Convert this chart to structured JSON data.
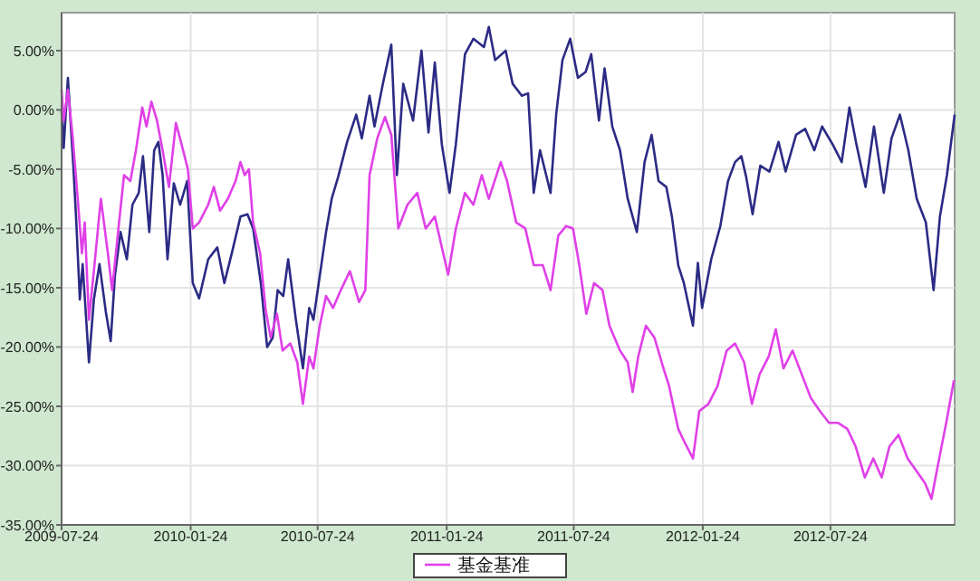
{
  "chart_data": {
    "type": "line",
    "xlim": [
      "2009-07-24",
      "2013-01-17"
    ],
    "xticks": [
      {
        "value": "2009-07-24",
        "label": "2009-07-24"
      },
      {
        "value": "2010-01-24",
        "label": "2010-01-24"
      },
      {
        "value": "2010-07-24",
        "label": "2010-07-24"
      },
      {
        "value": "2011-01-24",
        "label": "2011-01-24"
      },
      {
        "value": "2011-07-24",
        "label": "2011-07-24"
      },
      {
        "value": "2012-01-24",
        "label": "2012-01-24"
      },
      {
        "value": "2012-07-24",
        "label": "2012-07-24"
      }
    ],
    "ylim": [
      -35,
      8.2
    ],
    "yticks": [
      {
        "value": 5,
        "label": "5.00%"
      },
      {
        "value": 0,
        "label": "0.00%"
      },
      {
        "value": -5,
        "label": "-5.00%"
      },
      {
        "value": -10,
        "label": "-10.00%"
      },
      {
        "value": -15,
        "label": "-15.00%"
      },
      {
        "value": -20,
        "label": "-20.00%"
      },
      {
        "value": -25,
        "label": "-25.00%"
      },
      {
        "value": -30,
        "label": "-30.00%"
      },
      {
        "value": -35,
        "label": "-35.00%"
      }
    ],
    "grid": true,
    "legend": "bottom",
    "line_style": "solid",
    "marker": "none",
    "series": [
      {
        "color": "#2b2b85",
        "x": [
          "2009-07-24",
          "2009-07-27",
          "2009-08-02",
          "2009-08-10",
          "2009-08-14",
          "2009-08-19",
          "2009-08-23",
          "2009-09-01",
          "2009-09-08",
          "2009-09-16",
          "2009-09-25",
          "2009-10-02",
          "2009-10-08",
          "2009-10-16",
          "2009-10-25",
          "2009-11-02",
          "2009-11-11",
          "2009-11-17",
          "2009-11-26",
          "2009-12-03",
          "2009-12-09",
          "2009-12-15",
          "2009-12-22",
          "2009-12-31",
          "2010-01-09",
          "2010-01-19",
          "2010-01-27",
          "2010-02-05",
          "2010-02-18",
          "2010-03-03",
          "2010-03-13",
          "2010-03-24",
          "2010-04-05",
          "2010-04-15",
          "2010-04-23",
          "2010-05-04",
          "2010-05-13",
          "2010-05-21",
          "2010-05-28",
          "2010-06-05",
          "2010-06-12",
          "2010-06-23",
          "2010-07-03",
          "2010-07-12",
          "2010-07-18",
          "2010-07-27",
          "2010-08-05",
          "2010-08-13",
          "2010-08-22",
          "2010-09-04",
          "2010-09-17",
          "2010-09-25",
          "2010-10-06",
          "2010-10-13",
          "2010-10-25",
          "2010-11-06",
          "2010-11-14",
          "2010-11-23",
          "2010-12-07",
          "2010-12-19",
          "2010-12-29",
          "2011-01-07",
          "2011-01-17",
          "2011-01-28",
          "2011-02-06",
          "2011-02-19",
          "2011-03-03",
          "2011-03-18",
          "2011-03-25",
          "2011-04-03",
          "2011-04-18",
          "2011-04-28",
          "2011-05-11",
          "2011-05-20",
          "2011-05-28",
          "2011-06-06",
          "2011-06-21",
          "2011-06-29",
          "2011-07-08",
          "2011-07-19",
          "2011-07-30",
          "2011-08-10",
          "2011-08-18",
          "2011-08-29",
          "2011-09-06",
          "2011-09-17",
          "2011-09-28",
          "2011-10-09",
          "2011-10-22",
          "2011-11-02",
          "2011-11-12",
          "2011-11-22",
          "2011-12-03",
          "2011-12-11",
          "2011-12-20",
          "2011-12-28",
          "2012-01-10",
          "2012-01-17",
          "2012-01-23",
          "2012-02-05",
          "2012-02-18",
          "2012-02-29",
          "2012-03-10",
          "2012-03-19",
          "2012-03-26",
          "2012-04-04",
          "2012-04-15",
          "2012-04-28",
          "2012-05-11",
          "2012-05-21",
          "2012-06-05",
          "2012-06-18",
          "2012-07-01",
          "2012-07-12",
          "2012-07-27",
          "2012-08-09",
          "2012-08-20",
          "2012-08-30",
          "2012-09-12",
          "2012-09-24",
          "2012-10-08",
          "2012-10-19",
          "2012-10-31",
          "2012-11-12",
          "2012-11-24",
          "2012-12-07",
          "2012-12-18",
          "2012-12-27",
          "2013-01-06",
          "2013-01-17"
        ],
        "values": [
          0,
          -3.2,
          2.7,
          -5,
          -9.5,
          -16,
          -13,
          -21.3,
          -16,
          -13,
          -17,
          -19.5,
          -14,
          -10.3,
          -12.6,
          -8,
          -7,
          -3.9,
          -10.3,
          -3.4,
          -2.7,
          -5.5,
          -12.6,
          -6.2,
          -8,
          -6,
          -14.6,
          -15.9,
          -12.6,
          -11.6,
          -14.6,
          -12,
          -9,
          -8.8,
          -10,
          -14.6,
          -20,
          -19.2,
          -15.2,
          -15.7,
          -12.6,
          -17.7,
          -21.8,
          -16.7,
          -17.7,
          -14,
          -10.3,
          -7.5,
          -5.7,
          -2.7,
          -0.4,
          -2.4,
          1.2,
          -1.4,
          2.2,
          5.5,
          -5.5,
          2.2,
          -0.9,
          5,
          -1.9,
          4,
          -2.9,
          -7,
          -2.9,
          4.7,
          6,
          5.3,
          7,
          4.2,
          5,
          2.2,
          1.2,
          1.4,
          -7,
          -3.4,
          -7,
          -0.4,
          4.2,
          6,
          2.7,
          3.2,
          4.7,
          -0.9,
          3.5,
          -1.4,
          -3.4,
          -7.5,
          -10.3,
          -4.4,
          -2.1,
          -6,
          -6.5,
          -9,
          -13.1,
          -14.6,
          -18.2,
          -12.9,
          -16.7,
          -12.6,
          -9.8,
          -6,
          -4.4,
          -3.9,
          -5.7,
          -8.8,
          -4.7,
          -5.2,
          -2.7,
          -5.2,
          -2.1,
          -1.6,
          -3.4,
          -1.4,
          -2.9,
          -4.4,
          0.2,
          -2.9,
          -6.5,
          -1.4,
          -7,
          -2.4,
          -0.4,
          -3.4,
          -7.5,
          -9.5,
          -15.2,
          -9,
          -5.5,
          -0.4
        ]
      },
      {
        "name": "基金基准",
        "color": "#e040e8",
        "x": [
          "2009-07-24",
          "2009-07-27",
          "2009-08-02",
          "2009-08-09",
          "2009-08-16",
          "2009-08-22",
          "2009-08-26",
          "2009-09-01",
          "2009-09-08",
          "2009-09-18",
          "2009-09-28",
          "2009-10-04",
          "2009-10-12",
          "2009-10-21",
          "2009-10-30",
          "2009-11-07",
          "2009-11-16",
          "2009-11-22",
          "2009-11-29",
          "2009-12-07",
          "2009-12-15",
          "2009-12-24",
          "2010-01-03",
          "2010-01-11",
          "2010-01-20",
          "2010-01-27",
          "2010-02-05",
          "2010-02-18",
          "2010-02-26",
          "2010-03-07",
          "2010-03-18",
          "2010-03-29",
          "2010-04-05",
          "2010-04-11",
          "2010-04-17",
          "2010-04-23",
          "2010-05-03",
          "2010-05-11",
          "2010-05-18",
          "2010-05-27",
          "2010-06-04",
          "2010-06-15",
          "2010-06-25",
          "2010-07-03",
          "2010-07-12",
          "2010-07-18",
          "2010-07-27",
          "2010-08-05",
          "2010-08-15",
          "2010-08-26",
          "2010-09-08",
          "2010-09-21",
          "2010-09-30",
          "2010-10-06",
          "2010-10-17",
          "2010-10-28",
          "2010-11-06",
          "2010-11-16",
          "2010-11-29",
          "2010-12-13",
          "2010-12-25",
          "2011-01-07",
          "2011-01-19",
          "2011-01-26",
          "2011-02-06",
          "2011-02-19",
          "2011-03-03",
          "2011-03-15",
          "2011-03-25",
          "2011-04-11",
          "2011-04-20",
          "2011-05-03",
          "2011-05-16",
          "2011-05-28",
          "2011-06-10",
          "2011-06-21",
          "2011-07-02",
          "2011-07-13",
          "2011-07-23",
          "2011-08-01",
          "2011-08-11",
          "2011-08-22",
          "2011-09-03",
          "2011-09-13",
          "2011-09-28",
          "2011-10-09",
          "2011-10-16",
          "2011-10-24",
          "2011-11-04",
          "2011-11-16",
          "2011-11-29",
          "2011-12-07",
          "2011-12-20",
          "2011-12-28",
          "2012-01-10",
          "2012-01-19",
          "2012-02-01",
          "2012-02-14",
          "2012-02-27",
          "2012-03-10",
          "2012-03-23",
          "2012-04-03",
          "2012-04-14",
          "2012-04-27",
          "2012-05-07",
          "2012-05-18",
          "2012-05-31",
          "2012-06-13",
          "2012-06-26",
          "2012-07-09",
          "2012-07-22",
          "2012-08-04",
          "2012-08-17",
          "2012-08-29",
          "2012-09-11",
          "2012-09-23",
          "2012-10-05",
          "2012-10-16",
          "2012-10-29",
          "2012-11-11",
          "2012-11-23",
          "2012-12-06",
          "2012-12-15",
          "2012-12-26",
          "2013-01-05",
          "2013-01-16"
        ],
        "values": [
          1.7,
          -0.9,
          1.7,
          -2.4,
          -7.5,
          -12.1,
          -9.5,
          -17.7,
          -13.6,
          -7.5,
          -12.1,
          -15.2,
          -10.6,
          -5.5,
          -6,
          -3.4,
          0.2,
          -1.4,
          0.7,
          -0.9,
          -3.4,
          -6.5,
          -1.1,
          -2.9,
          -5,
          -10,
          -9.5,
          -8,
          -6.5,
          -8.5,
          -7.5,
          -6,
          -4.4,
          -5.5,
          -5,
          -9.5,
          -12.1,
          -16.9,
          -19.2,
          -17.2,
          -20.3,
          -19.7,
          -21.3,
          -24.8,
          -20.8,
          -21.8,
          -18.2,
          -15.7,
          -16.7,
          -15.2,
          -13.6,
          -16.2,
          -15.2,
          -5.5,
          -2.4,
          -0.6,
          -2.1,
          -10,
          -8,
          -7,
          -10,
          -9,
          -12.1,
          -13.9,
          -10,
          -7,
          -8,
          -5.5,
          -7.5,
          -4.4,
          -6,
          -9.5,
          -10,
          -13.1,
          -13.1,
          -15.2,
          -10.6,
          -9.8,
          -10,
          -13.1,
          -17.2,
          -14.6,
          -15.2,
          -18.2,
          -20.3,
          -21.3,
          -23.8,
          -20.8,
          -18.2,
          -19.2,
          -21.8,
          -23.3,
          -26.9,
          -27.9,
          -29.4,
          -25.4,
          -24.8,
          -23.3,
          -20.3,
          -19.7,
          -21.3,
          -24.8,
          -22.3,
          -20.8,
          -18.5,
          -21.8,
          -20.3,
          -22.3,
          -24.3,
          -25.4,
          -26.4,
          -26.4,
          -26.9,
          -28.4,
          -31,
          -29.4,
          -31,
          -28.4,
          -27.4,
          -29.4,
          -30.4,
          -31.5,
          -32.8,
          -29.4,
          -26.4,
          -22.8
        ]
      }
    ]
  }
}
